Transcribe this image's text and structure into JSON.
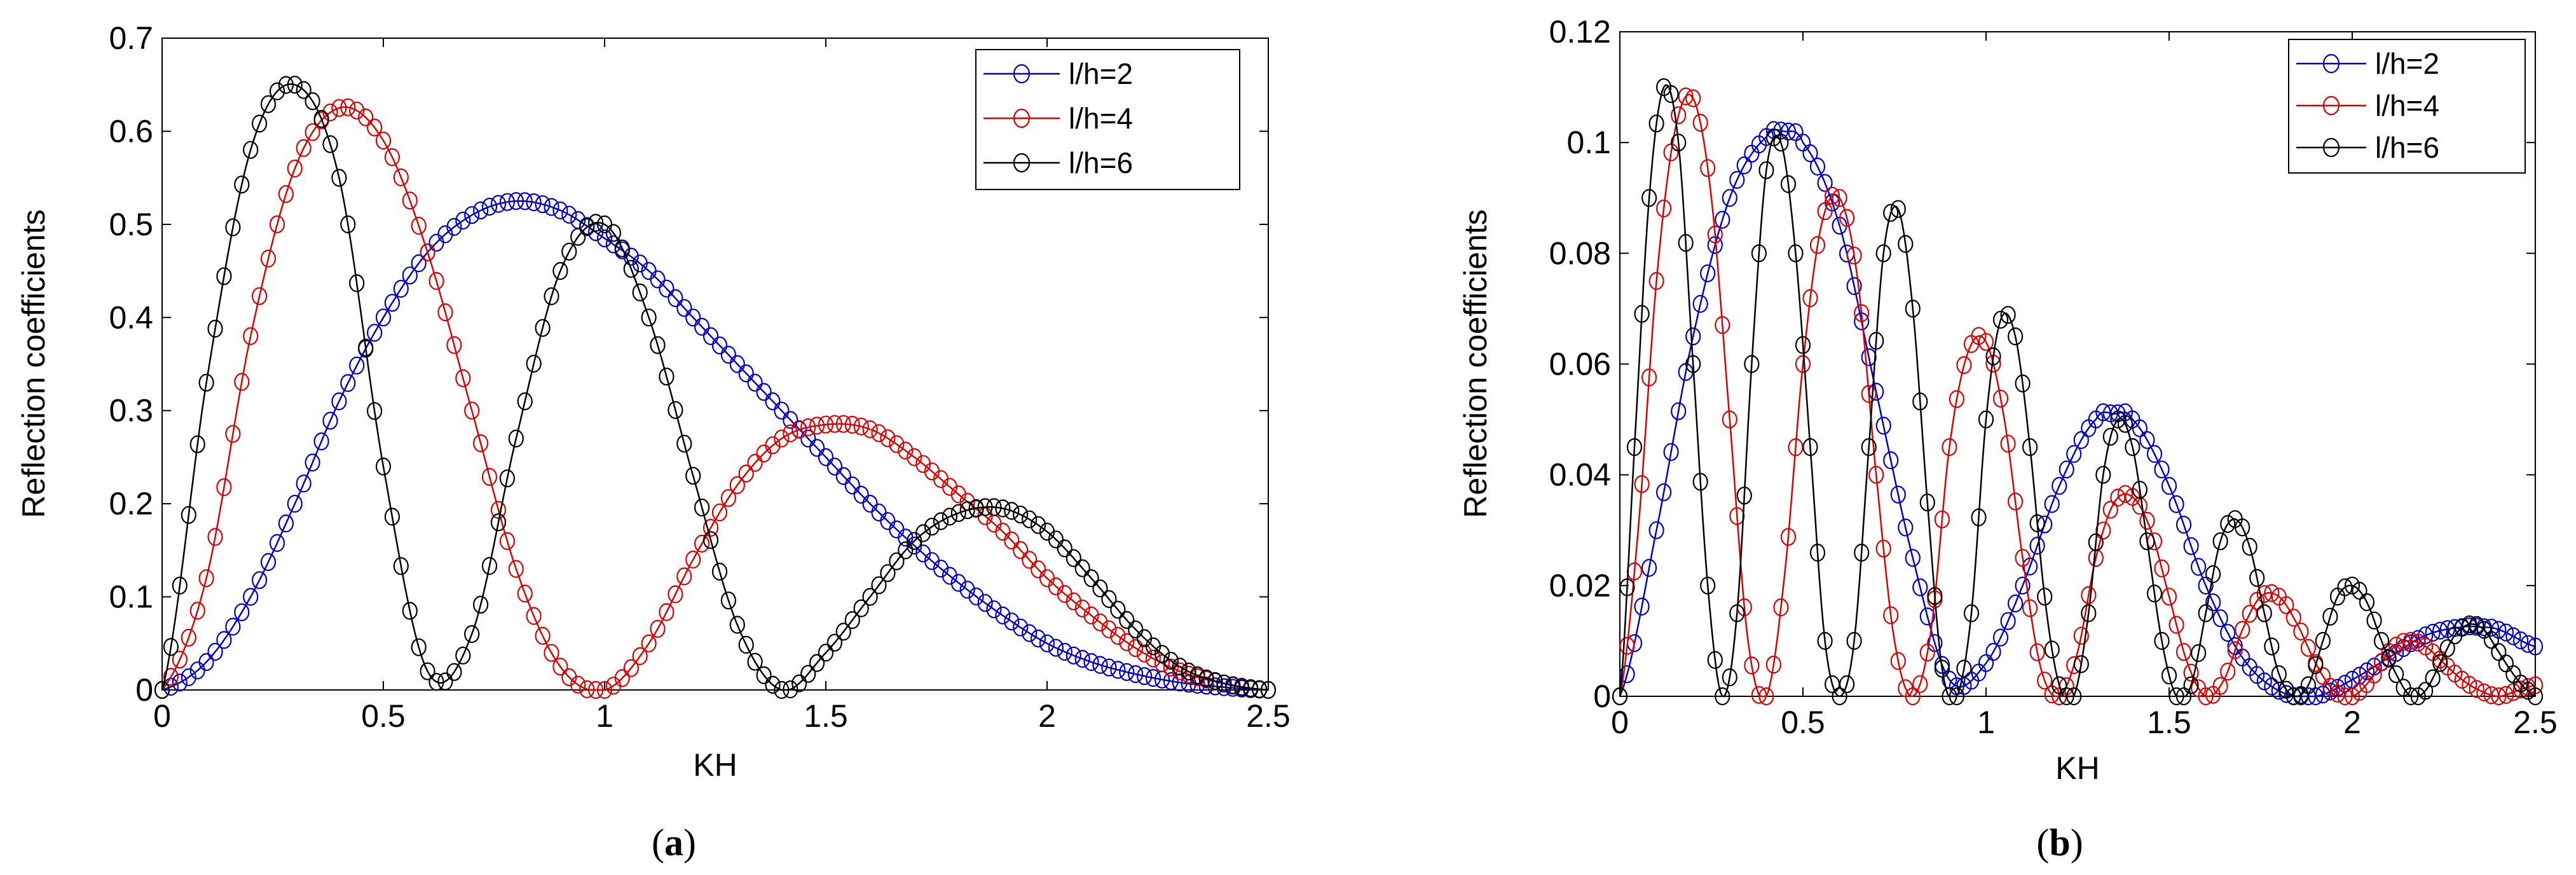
{
  "chart_data": [
    {
      "type": "line",
      "panel": "a",
      "caption_open": "(",
      "caption_letter": "a",
      "caption_close": ")",
      "title": "",
      "xlabel": "KH",
      "ylabel": "Reflection coefficients",
      "xlim": [
        0,
        2.5
      ],
      "ylim": [
        0,
        0.7
      ],
      "xticks": [
        0,
        0.5,
        1,
        1.5,
        2,
        2.5
      ],
      "xtick_labels": [
        "0",
        "0.5",
        "1",
        "1.5",
        "2",
        "2.5"
      ],
      "yticks": [
        0,
        0.1,
        0.2,
        0.3,
        0.4,
        0.5,
        0.6,
        0.7
      ],
      "ytick_labels": [
        "0",
        "0.1",
        "0.2",
        "0.3",
        "0.4",
        "0.5",
        "0.6",
        "0.7"
      ],
      "legend_position": "top-right",
      "series": [
        {
          "name": "l/h=2",
          "color": "#0000cc",
          "x": [
            0,
            0.1,
            0.2,
            0.3,
            0.4,
            0.5,
            0.6,
            0.7,
            0.8,
            0.9,
            1.0,
            1.1,
            1.2,
            1.3,
            1.4,
            1.5,
            1.6,
            1.7,
            1.8,
            1.9,
            2.0,
            2.1,
            2.2,
            2.3,
            2.4,
            2.5
          ],
          "y": [
            0,
            0.03,
            0.1,
            0.2,
            0.31,
            0.4,
            0.47,
            0.51,
            0.525,
            0.515,
            0.485,
            0.45,
            0.4,
            0.35,
            0.3,
            0.25,
            0.2,
            0.155,
            0.115,
            0.08,
            0.05,
            0.03,
            0.017,
            0.008,
            0.003,
            0.0
          ]
        },
        {
          "name": "l/h=4",
          "color": "#dd0000",
          "x": [
            0,
            0.1,
            0.2,
            0.3,
            0.4,
            0.5,
            0.6,
            0.7,
            0.8,
            0.9,
            1.0,
            1.1,
            1.2,
            1.3,
            1.4,
            1.5,
            1.6,
            1.7,
            1.8,
            1.9,
            2.0,
            2.1,
            2.2,
            2.3,
            2.4,
            2.5
          ],
          "y": [
            0,
            0.12,
            0.38,
            0.56,
            0.625,
            0.59,
            0.47,
            0.3,
            0.13,
            0.025,
            0.0,
            0.05,
            0.14,
            0.22,
            0.27,
            0.285,
            0.28,
            0.25,
            0.21,
            0.17,
            0.12,
            0.08,
            0.045,
            0.02,
            0.007,
            0.0
          ]
        },
        {
          "name": "l/h=6",
          "color": "#000000",
          "x": [
            0,
            0.1,
            0.2,
            0.3,
            0.4,
            0.5,
            0.6,
            0.7,
            0.8,
            0.9,
            1.0,
            1.1,
            1.2,
            1.3,
            1.4,
            1.5,
            1.6,
            1.7,
            1.8,
            1.9,
            2.0,
            2.1,
            2.2,
            2.3,
            2.4,
            2.5
          ],
          "y": [
            0,
            0.33,
            0.58,
            0.65,
            0.55,
            0.24,
            0.02,
            0.06,
            0.27,
            0.45,
            0.5,
            0.4,
            0.23,
            0.07,
            0.0,
            0.04,
            0.1,
            0.16,
            0.19,
            0.195,
            0.17,
            0.12,
            0.065,
            0.025,
            0.007,
            0.0
          ]
        }
      ]
    },
    {
      "type": "line",
      "panel": "b",
      "caption_open": "(",
      "caption_letter": "b",
      "caption_close": ")",
      "title": "",
      "xlabel": "KH",
      "ylabel": "Reflection coefficients",
      "xlim": [
        0,
        2.5
      ],
      "ylim": [
        0,
        0.12
      ],
      "xticks": [
        0,
        0.5,
        1,
        1.5,
        2,
        2.5
      ],
      "xtick_labels": [
        "0",
        "0.5",
        "1",
        "1.5",
        "2",
        "2.5"
      ],
      "yticks": [
        0,
        0.02,
        0.04,
        0.06,
        0.08,
        0.1,
        0.12
      ],
      "ytick_labels": [
        "0",
        "0.02",
        "0.04",
        "0.06",
        "0.08",
        "0.1",
        "0.12"
      ],
      "legend_position": "top-right",
      "series": [
        {
          "name": "l/h=2",
          "color": "#0000cc",
          "x": [
            0,
            0.1,
            0.2,
            0.3,
            0.4,
            0.45,
            0.5,
            0.6,
            0.7,
            0.8,
            0.9,
            1.0,
            1.1,
            1.2,
            1.3,
            1.35,
            1.4,
            1.5,
            1.6,
            1.7,
            1.8,
            1.9,
            2.0,
            2.1,
            2.2,
            2.3,
            2.35,
            2.4,
            2.5
          ],
          "y": [
            0,
            0.03,
            0.065,
            0.09,
            0.101,
            0.102,
            0.1,
            0.085,
            0.055,
            0.025,
            0.003,
            0.006,
            0.02,
            0.038,
            0.05,
            0.051,
            0.05,
            0.038,
            0.02,
            0.007,
            0.001,
            0.0,
            0.003,
            0.007,
            0.011,
            0.0125,
            0.0125,
            0.012,
            0.009
          ]
        },
        {
          "name": "l/h=4",
          "color": "#dd0000",
          "x": [
            0,
            0.05,
            0.1,
            0.15,
            0.2,
            0.25,
            0.3,
            0.35,
            0.4,
            0.45,
            0.5,
            0.55,
            0.6,
            0.65,
            0.7,
            0.75,
            0.8,
            0.85,
            0.9,
            0.95,
            1.0,
            1.05,
            1.1,
            1.15,
            1.2,
            1.25,
            1.3,
            1.35,
            1.4,
            1.45,
            1.5,
            1.55,
            1.6,
            1.65,
            1.7,
            1.75,
            1.8,
            1.85,
            1.9,
            1.95,
            2.0,
            2.05,
            2.1,
            2.15,
            2.2,
            2.25,
            2.3,
            2.35,
            2.4,
            2.45,
            2.5
          ],
          "y": [
            0,
            0.03,
            0.075,
            0.102,
            0.108,
            0.09,
            0.05,
            0.01,
            0.0,
            0.022,
            0.06,
            0.085,
            0.09,
            0.075,
            0.04,
            0.01,
            0.0,
            0.012,
            0.045,
            0.062,
            0.064,
            0.05,
            0.025,
            0.005,
            0.0,
            0.008,
            0.025,
            0.035,
            0.036,
            0.03,
            0.018,
            0.006,
            0.0,
            0.003,
            0.012,
            0.018,
            0.018,
            0.013,
            0.006,
            0.001,
            0.0,
            0.003,
            0.008,
            0.01,
            0.009,
            0.006,
            0.003,
            0.001,
            0.0,
            0.001,
            0.002
          ]
        },
        {
          "name": "l/h=6",
          "color": "#000000",
          "x": [
            0,
            0.04,
            0.08,
            0.12,
            0.16,
            0.2,
            0.24,
            0.28,
            0.32,
            0.36,
            0.4,
            0.44,
            0.48,
            0.52,
            0.56,
            0.6,
            0.64,
            0.68,
            0.72,
            0.76,
            0.8,
            0.84,
            0.88,
            0.92,
            0.96,
            1.0,
            1.04,
            1.08,
            1.12,
            1.16,
            1.2,
            1.24,
            1.28,
            1.32,
            1.36,
            1.4,
            1.44,
            1.48,
            1.52,
            1.56,
            1.6,
            1.64,
            1.68,
            1.72,
            1.76,
            1.8,
            1.84,
            1.88,
            1.92,
            1.96,
            2.0,
            2.04,
            2.08,
            2.12,
            2.16,
            2.2,
            2.24,
            2.28,
            2.32,
            2.36,
            2.4,
            2.44,
            2.48,
            2.5
          ],
          "y": [
            0,
            0.045,
            0.09,
            0.11,
            0.1,
            0.06,
            0.02,
            0.0,
            0.015,
            0.06,
            0.095,
            0.1,
            0.08,
            0.045,
            0.01,
            0.0,
            0.01,
            0.045,
            0.08,
            0.088,
            0.07,
            0.035,
            0.005,
            0.0,
            0.015,
            0.05,
            0.068,
            0.065,
            0.045,
            0.018,
            0.002,
            0.0,
            0.015,
            0.04,
            0.05,
            0.045,
            0.028,
            0.01,
            0.0,
            0.002,
            0.015,
            0.028,
            0.032,
            0.027,
            0.015,
            0.004,
            0.0,
            0.002,
            0.01,
            0.018,
            0.02,
            0.017,
            0.01,
            0.004,
            0.0,
            0.001,
            0.006,
            0.011,
            0.013,
            0.012,
            0.008,
            0.004,
            0.001,
            0.0
          ]
        }
      ]
    }
  ]
}
